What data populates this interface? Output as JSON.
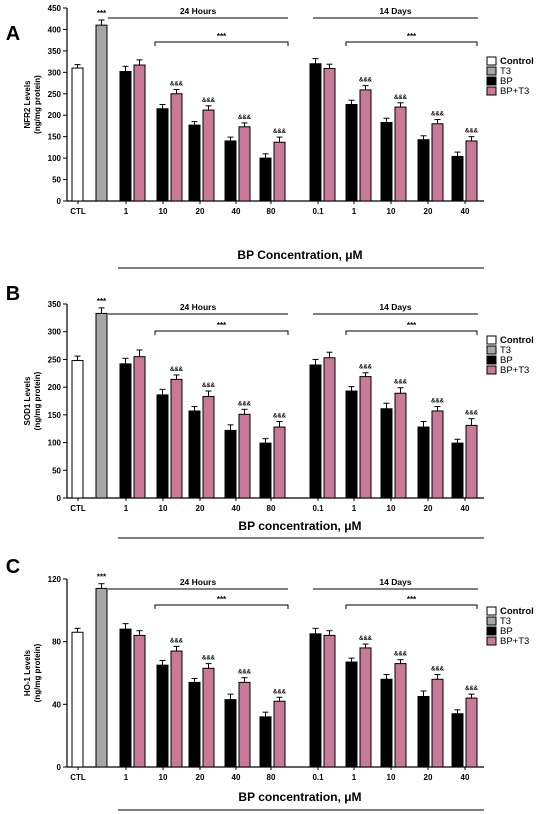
{
  "figure": {
    "x_categories": [
      "CTL",
      "1",
      "10",
      "20",
      "40",
      "80",
      "0.1",
      "1",
      "10",
      "20",
      "40"
    ],
    "group_labels": [
      "24 Hours",
      "14 Days"
    ],
    "legend": [
      {
        "label": "Control",
        "color": "#ffffff"
      },
      {
        "label": "T3",
        "color": "#a6a6a6"
      },
      {
        "label": "BP",
        "color": "#000000"
      },
      {
        "label": "BP+T3",
        "color": "#c97a98"
      }
    ],
    "significance_top": "***",
    "significance_amp": "&&&"
  },
  "chart_data": [
    {
      "type": "bar",
      "panel": "A",
      "ylabel_line1": "NFR2 Levels",
      "ylabel_line2": "(ng/mg protein)",
      "xlabel_text": "BP Concentration, ",
      "xlabel_unit": "μM",
      "ylim": [
        0,
        450
      ],
      "yticks": [
        0,
        50,
        100,
        150,
        200,
        250,
        300,
        350,
        400,
        450
      ],
      "control": 310,
      "control_err": 8,
      "t3": 410,
      "t3_err": 12,
      "series": [
        {
          "name": "BP",
          "values": [
            302,
            215,
            177,
            140,
            100,
            320,
            225,
            183,
            143,
            104
          ],
          "errors": [
            12,
            10,
            8,
            9,
            10,
            12,
            10,
            10,
            9,
            10
          ]
        },
        {
          "name": "BP+T3",
          "values": [
            317,
            250,
            212,
            173,
            137,
            309,
            259,
            219,
            180,
            140
          ],
          "errors": [
            12,
            10,
            10,
            9,
            12,
            10,
            10,
            10,
            10,
            10
          ]
        }
      ]
    },
    {
      "type": "bar",
      "panel": "B",
      "ylabel_line1": "SOD1 Levels",
      "ylabel_line2": "(ng/mg protein)",
      "xlabel_text": "BP concentration, ",
      "xlabel_unit": "μM",
      "ylim": [
        0,
        350
      ],
      "yticks": [
        0,
        50,
        100,
        150,
        200,
        250,
        300,
        350
      ],
      "control": 248,
      "control_err": 8,
      "t3": 333,
      "t3_err": 10,
      "series": [
        {
          "name": "BP",
          "values": [
            242,
            186,
            157,
            122,
            99,
            240,
            193,
            161,
            128,
            99
          ],
          "errors": [
            10,
            10,
            8,
            10,
            8,
            10,
            8,
            10,
            10,
            7
          ]
        },
        {
          "name": "BP+T3",
          "values": [
            255,
            214,
            183,
            151,
            128,
            253,
            219,
            189,
            157,
            131
          ],
          "errors": [
            12,
            8,
            10,
            9,
            10,
            10,
            7,
            10,
            8,
            12
          ]
        }
      ]
    },
    {
      "type": "bar",
      "panel": "C",
      "ylabel_line1": "HO-1 Levels",
      "ylabel_line2": "(ng/mg protein)",
      "xlabel_text": "BP concentration, ",
      "xlabel_unit": "μM",
      "ylim": [
        0,
        120
      ],
      "yticks": [
        0,
        40,
        80,
        120
      ],
      "control": 86,
      "control_err": 2.5,
      "t3": 114,
      "t3_err": 3,
      "series": [
        {
          "name": "BP",
          "values": [
            88,
            65,
            54,
            43,
            32,
            85,
            67,
            56,
            45,
            34
          ],
          "errors": [
            3.5,
            3,
            2.5,
            3.5,
            3,
            3.5,
            2.5,
            3,
            3.5,
            2.5
          ]
        },
        {
          "name": "BP+T3",
          "values": [
            84,
            74,
            63,
            54,
            42,
            84,
            76,
            66,
            56,
            44
          ],
          "errors": [
            3,
            3,
            3,
            3,
            2.5,
            3,
            2.5,
            2.5,
            3,
            2.5
          ]
        }
      ]
    }
  ]
}
